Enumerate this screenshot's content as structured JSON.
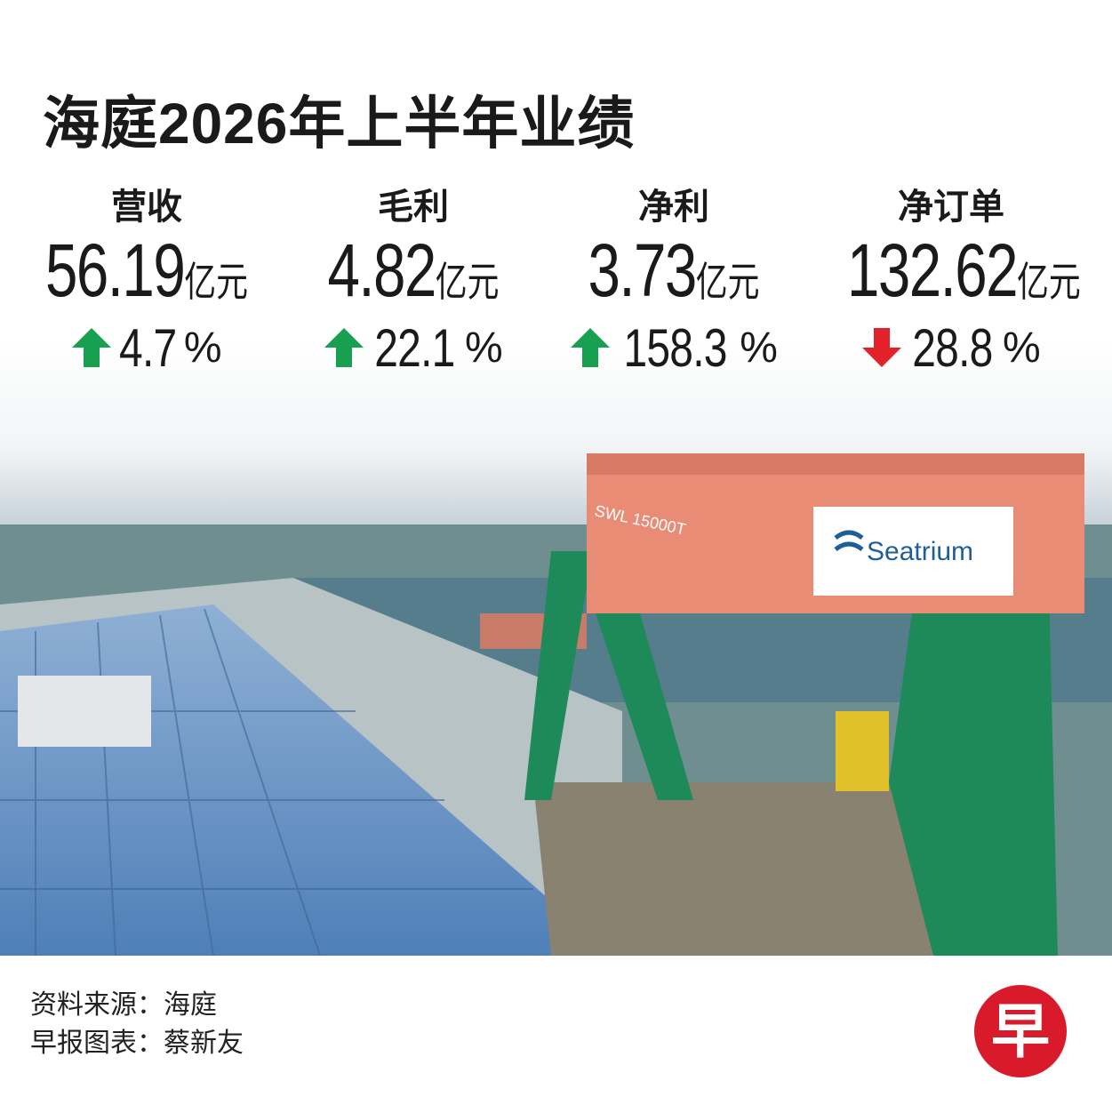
{
  "title": "海庭2026年上半年业绩",
  "metrics": [
    {
      "label": "营收",
      "value": "56.19",
      "unit": "亿元",
      "change": "4.7",
      "change_unit": "%",
      "direction": "up"
    },
    {
      "label": "毛利",
      "value": "4.82",
      "unit": "亿元",
      "change": "22.1",
      "change_unit": "%",
      "direction": "up"
    },
    {
      "label": "净利",
      "value": "3.73",
      "unit": "亿元",
      "change": "158.3",
      "change_unit": "%",
      "direction": "up"
    },
    {
      "label": "净订单",
      "value": "132.62",
      "unit": "亿元",
      "change": "28.8",
      "change_unit": "%",
      "direction": "down"
    }
  ],
  "photo": {
    "sign": "Seatrium",
    "beam": "SWL 15000T"
  },
  "footer": {
    "source": "资料来源：海庭",
    "credit": "早报图表：蔡新友",
    "logo": "早"
  }
}
